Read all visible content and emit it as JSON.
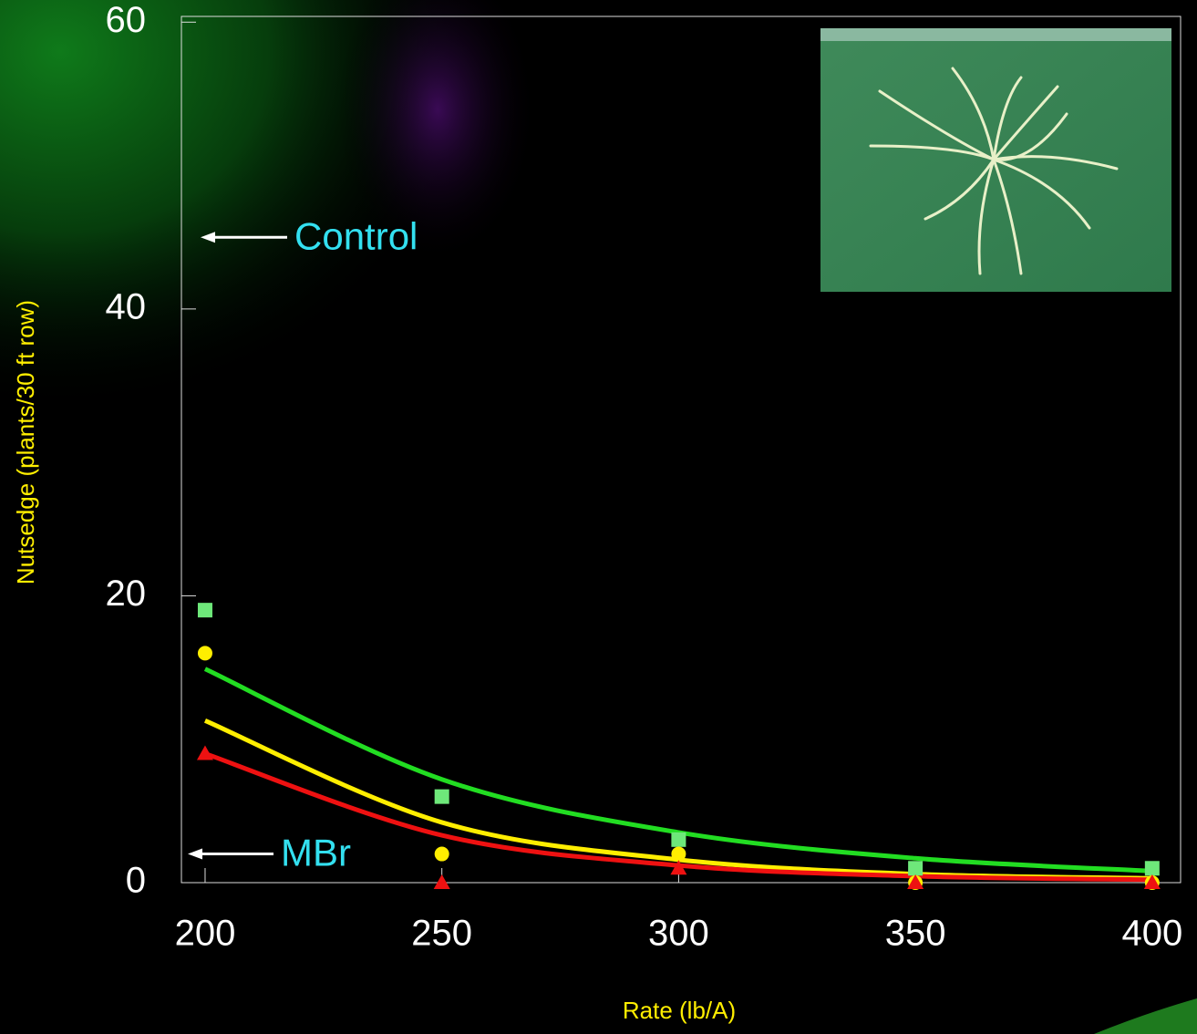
{
  "chart_data": {
    "type": "scatter",
    "x_label": "Rate (lb/A)",
    "y_label": "Nutsedge (plants/30 ft row)",
    "x": [
      200,
      250,
      300,
      350,
      400
    ],
    "xlim": [
      195,
      406
    ],
    "xticks": [
      200,
      250,
      300,
      350,
      400
    ],
    "ylim": [
      0,
      60.4
    ],
    "yticks": [
      0,
      20,
      40,
      60
    ],
    "series": [
      {
        "color": "#6ee87a",
        "marker": "square",
        "values": [
          19,
          6,
          3,
          1,
          1
        ]
      },
      {
        "color": "#ffee00",
        "marker": "circle",
        "values": [
          16,
          2,
          2,
          0,
          0
        ]
      },
      {
        "color": "#ee1111",
        "marker": "triangle",
        "values": [
          9,
          0,
          1,
          0,
          0
        ]
      }
    ],
    "trendlines": [
      {
        "color": "#22dd22",
        "values": [
          14.9,
          7.2,
          3.5,
          1.7,
          0.8
        ]
      },
      {
        "color": "#ffee00",
        "values": [
          11.3,
          4.2,
          1.6,
          0.6,
          0.3
        ]
      },
      {
        "color": "#ee1111",
        "values": [
          9,
          3.3,
          1.2,
          0.45,
          0.2
        ]
      }
    ],
    "annotations": [
      {
        "text": "Control",
        "value": 45
      },
      {
        "text": "MBr",
        "value": 2
      }
    ],
    "annotation_color": "#33e0f0",
    "axis_label_color": "#ffee00"
  }
}
